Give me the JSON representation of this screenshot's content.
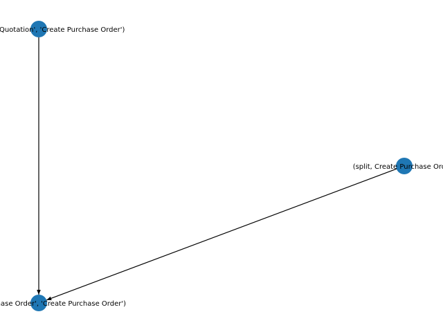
{
  "graph": {
    "node_color": "#1f77b4",
    "edge_color": "#000000",
    "label_color": "#000000",
    "nodes": [
      {
        "id": "n1",
        "label": "('Request for Quotation', 'Create Purchase Order')"
      },
      {
        "id": "n2",
        "label": "(split, Create Purchase Order)"
      },
      {
        "id": "n3",
        "label": "('Create Purchase Order', 'Create Purchase Order')"
      }
    ],
    "edges": [
      {
        "from": "n1",
        "to": "n3"
      },
      {
        "from": "n2",
        "to": "n3"
      }
    ]
  }
}
